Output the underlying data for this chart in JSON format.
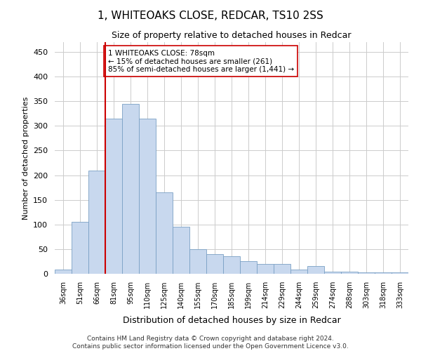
{
  "title": "1, WHITEOAKS CLOSE, REDCAR, TS10 2SS",
  "subtitle": "Size of property relative to detached houses in Redcar",
  "xlabel": "Distribution of detached houses by size in Redcar",
  "ylabel": "Number of detached properties",
  "bar_color": "#c8d8ee",
  "bar_edge_color": "#7aa0c4",
  "categories": [
    "36sqm",
    "51sqm",
    "66sqm",
    "81sqm",
    "95sqm",
    "110sqm",
    "125sqm",
    "140sqm",
    "155sqm",
    "170sqm",
    "185sqm",
    "199sqm",
    "214sqm",
    "229sqm",
    "244sqm",
    "259sqm",
    "274sqm",
    "288sqm",
    "303sqm",
    "318sqm",
    "333sqm"
  ],
  "values": [
    8,
    105,
    210,
    315,
    345,
    315,
    165,
    95,
    50,
    40,
    35,
    25,
    20,
    20,
    8,
    15,
    4,
    4,
    3,
    3,
    3
  ],
  "vline_color": "#cc0000",
  "vline_pos": 2.5,
  "annotation_text": "1 WHITEOAKS CLOSE: 78sqm\n← 15% of detached houses are smaller (261)\n85% of semi-detached houses are larger (1,441) →",
  "annotation_box_color": "#ffffff",
  "annotation_box_edge": "#cc0000",
  "ylim": [
    0,
    470
  ],
  "yticks": [
    0,
    50,
    100,
    150,
    200,
    250,
    300,
    350,
    400,
    450
  ],
  "footer": "Contains HM Land Registry data © Crown copyright and database right 2024.\nContains public sector information licensed under the Open Government Licence v3.0.",
  "background_color": "#ffffff",
  "grid_color": "#cccccc"
}
